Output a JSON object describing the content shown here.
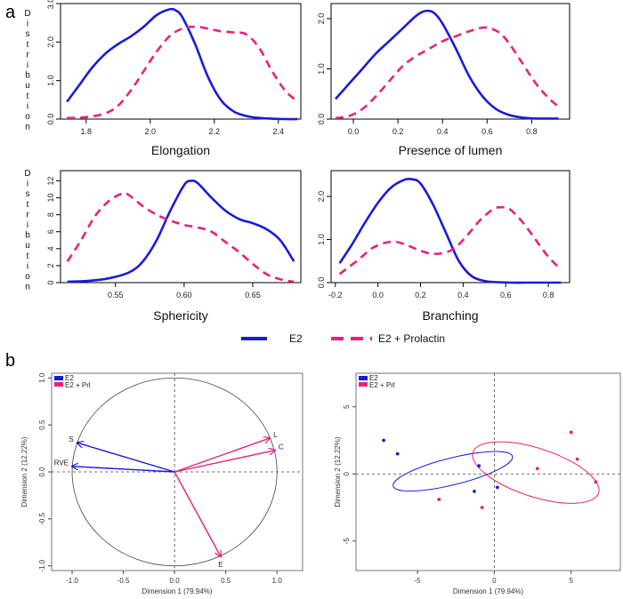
{
  "labels": {
    "a": "a",
    "b": "b"
  },
  "colors": {
    "e2": "#1a1adb",
    "prl": "#e8207d",
    "axis": "#333333"
  },
  "ylab_density": "Distribution",
  "legend_a": {
    "e2": "E2",
    "prl": "E2 + Prolactin"
  },
  "legend_b": {
    "e2": "E2",
    "prl": "E2 + Prl"
  },
  "chart_data": [
    {
      "id": "elongation",
      "type": "line",
      "xlabel": "Elongation",
      "ylabel": "Distribution",
      "xlim": [
        1.72,
        2.47
      ],
      "ylim": [
        0,
        3.0
      ],
      "xticks": [
        1.8,
        2.0,
        2.2,
        2.4
      ],
      "xtick_labels": [
        "1.8",
        "2.0",
        "2.2",
        "2.4"
      ],
      "yticks": [
        0,
        1.0,
        2.0,
        3.0
      ],
      "ytick_labels": [
        "0.0",
        "1.0",
        "2.0",
        "3.0"
      ],
      "series": [
        {
          "name": "E2",
          "style": "solid",
          "x": [
            1.74,
            1.78,
            1.82,
            1.86,
            1.9,
            1.94,
            1.98,
            2.02,
            2.06,
            2.08,
            2.1,
            2.14,
            2.18,
            2.22,
            2.26,
            2.3,
            2.34,
            2.38,
            2.42,
            2.46
          ],
          "y": [
            0.45,
            0.9,
            1.35,
            1.7,
            1.95,
            2.15,
            2.4,
            2.7,
            2.85,
            2.82,
            2.65,
            1.95,
            1.1,
            0.5,
            0.2,
            0.08,
            0.03,
            0.01,
            0.0,
            0.0
          ]
        },
        {
          "name": "E2 + Prolactin",
          "style": "dashed",
          "x": [
            1.74,
            1.8,
            1.86,
            1.9,
            1.94,
            1.98,
            2.02,
            2.06,
            2.1,
            2.14,
            2.18,
            2.22,
            2.26,
            2.3,
            2.34,
            2.38,
            2.42,
            2.46
          ],
          "y": [
            0.03,
            0.05,
            0.15,
            0.35,
            0.75,
            1.25,
            1.75,
            2.15,
            2.35,
            2.4,
            2.35,
            2.28,
            2.25,
            2.2,
            1.85,
            1.25,
            0.75,
            0.45
          ]
        }
      ]
    },
    {
      "id": "lumen",
      "type": "line",
      "xlabel": "Presence of lumen",
      "ylabel": "",
      "xlim": [
        -0.1,
        0.97
      ],
      "ylim": [
        0,
        2.3
      ],
      "xticks": [
        0.0,
        0.2,
        0.4,
        0.6,
        0.8
      ],
      "xtick_labels": [
        "0.0",
        "0.2",
        "0.4",
        "0.6",
        "0.8"
      ],
      "yticks": [
        0,
        1.0,
        2.0
      ],
      "ytick_labels": [
        "0.0",
        "1.0",
        "2.0"
      ],
      "series": [
        {
          "name": "E2",
          "style": "solid",
          "x": [
            -0.08,
            -0.02,
            0.04,
            0.1,
            0.16,
            0.22,
            0.28,
            0.32,
            0.36,
            0.4,
            0.46,
            0.52,
            0.58,
            0.64,
            0.7,
            0.76,
            0.82,
            0.88,
            0.92
          ],
          "y": [
            0.4,
            0.7,
            1.0,
            1.3,
            1.55,
            1.8,
            2.05,
            2.15,
            2.12,
            1.9,
            1.4,
            0.85,
            0.45,
            0.2,
            0.08,
            0.03,
            0.01,
            0.01,
            0.01
          ]
        },
        {
          "name": "E2 + Prolactin",
          "style": "dashed",
          "x": [
            -0.08,
            -0.02,
            0.04,
            0.1,
            0.16,
            0.22,
            0.28,
            0.34,
            0.4,
            0.46,
            0.52,
            0.58,
            0.62,
            0.66,
            0.7,
            0.76,
            0.82,
            0.88,
            0.92
          ],
          "y": [
            0.02,
            0.06,
            0.2,
            0.45,
            0.75,
            1.05,
            1.25,
            1.4,
            1.55,
            1.65,
            1.75,
            1.82,
            1.8,
            1.7,
            1.5,
            1.1,
            0.7,
            0.4,
            0.25
          ]
        }
      ]
    },
    {
      "id": "sphericity",
      "type": "line",
      "xlabel": "Sphericity",
      "ylabel": "Distribution",
      "xlim": [
        0.51,
        0.685
      ],
      "ylim": [
        0,
        13.2
      ],
      "xticks": [
        0.55,
        0.6,
        0.65
      ],
      "xtick_labels": [
        "0.55",
        "0.60",
        "0.65"
      ],
      "yticks": [
        0,
        2,
        4,
        6,
        8,
        10,
        12
      ],
      "ytick_labels": [
        "0",
        "2",
        "4",
        "6",
        "8",
        "10",
        "12"
      ],
      "series": [
        {
          "name": "E2",
          "style": "solid",
          "x": [
            0.515,
            0.53,
            0.545,
            0.56,
            0.57,
            0.58,
            0.59,
            0.6,
            0.605,
            0.61,
            0.62,
            0.63,
            0.64,
            0.65,
            0.66,
            0.67,
            0.68
          ],
          "y": [
            0.1,
            0.2,
            0.5,
            1.2,
            2.5,
            5.0,
            8.5,
            11.5,
            12.0,
            11.7,
            10.0,
            8.5,
            7.5,
            7.0,
            6.3,
            5.0,
            2.5
          ]
        },
        {
          "name": "E2 + Prolactin",
          "style": "dashed",
          "x": [
            0.515,
            0.525,
            0.535,
            0.545,
            0.555,
            0.56,
            0.57,
            0.58,
            0.59,
            0.6,
            0.61,
            0.62,
            0.63,
            0.64,
            0.65,
            0.66,
            0.67,
            0.68
          ],
          "y": [
            2.5,
            5.0,
            7.8,
            9.6,
            10.5,
            10.3,
            9.0,
            8.0,
            7.3,
            6.8,
            6.5,
            6.0,
            4.8,
            3.6,
            2.2,
            1.0,
            0.4,
            0.1
          ]
        }
      ]
    },
    {
      "id": "branching",
      "type": "line",
      "xlabel": "Branching",
      "ylabel": "",
      "xlim": [
        -0.22,
        0.9
      ],
      "ylim": [
        0,
        2.6
      ],
      "xticks": [
        -0.2,
        0.0,
        0.2,
        0.4,
        0.6,
        0.8
      ],
      "xtick_labels": [
        "-0.2",
        "0.0",
        "0.2",
        "0.4",
        "0.6",
        "0.8"
      ],
      "yticks": [
        0,
        1.0,
        2.0
      ],
      "ytick_labels": [
        "0.0",
        "1.0",
        "2.0"
      ],
      "series": [
        {
          "name": "E2",
          "style": "solid",
          "x": [
            -0.18,
            -0.12,
            -0.06,
            0.0,
            0.06,
            0.12,
            0.16,
            0.2,
            0.26,
            0.32,
            0.38,
            0.44,
            0.5,
            0.56,
            0.62,
            0.7,
            0.78,
            0.86
          ],
          "y": [
            0.45,
            0.9,
            1.4,
            1.85,
            2.2,
            2.38,
            2.4,
            2.3,
            1.8,
            1.15,
            0.5,
            0.15,
            0.04,
            0.01,
            0.0,
            0.0,
            0.0,
            0.0
          ]
        },
        {
          "name": "E2 + Prolactin",
          "style": "dashed",
          "x": [
            -0.18,
            -0.1,
            -0.02,
            0.06,
            0.12,
            0.18,
            0.24,
            0.3,
            0.36,
            0.42,
            0.48,
            0.54,
            0.58,
            0.62,
            0.68,
            0.74,
            0.8,
            0.86
          ],
          "y": [
            0.2,
            0.5,
            0.82,
            0.95,
            0.9,
            0.78,
            0.68,
            0.68,
            0.8,
            1.1,
            1.45,
            1.7,
            1.75,
            1.7,
            1.4,
            1.0,
            0.6,
            0.3
          ]
        }
      ]
    },
    {
      "id": "correlation-circle",
      "type": "scatter",
      "xlabel": "Dimension 1 (79.94%)",
      "ylabel": "Dimension 2 (12.22%)",
      "xlim": [
        -1.2,
        1.25
      ],
      "ylim": [
        -1.05,
        1.05
      ],
      "xticks": [
        -1.0,
        -0.5,
        0.0,
        0.5,
        1.0
      ],
      "xtick_labels": [
        "-1.0",
        "-0.5",
        "0.0",
        "0.5",
        "1.0"
      ],
      "yticks": [
        -1.0,
        -0.5,
        0.0,
        0.5,
        1.0
      ],
      "ytick_labels": [
        "-1.0",
        "-0.5",
        "0.0",
        "0.5",
        "1.0"
      ],
      "vectors": [
        {
          "label": "S",
          "x": -0.95,
          "y": 0.31,
          "group": "E2"
        },
        {
          "label": "RVE",
          "x": -1.0,
          "y": 0.06,
          "group": "E2"
        },
        {
          "label": "L",
          "x": 0.93,
          "y": 0.36,
          "group": "E2 + Prl"
        },
        {
          "label": "C",
          "x": 0.98,
          "y": 0.23,
          "group": "E2 + Prl"
        },
        {
          "label": "E",
          "x": 0.45,
          "y": -0.9,
          "group": "E2 + Prl"
        }
      ]
    },
    {
      "id": "individuals",
      "type": "scatter",
      "xlabel": "Dimension 1 (79.94%)",
      "ylabel": "Dimension 2 (12.22%)",
      "xlim": [
        -9.0,
        8.2
      ],
      "ylim": [
        -7.2,
        7.5
      ],
      "xticks": [
        -5,
        0,
        5
      ],
      "xtick_labels": [
        "-5",
        "0",
        "5"
      ],
      "yticks": [
        -5,
        0,
        5
      ],
      "ytick_labels": [
        "-5",
        "0",
        "5"
      ],
      "series": [
        {
          "name": "E2",
          "x": [
            -7.2,
            -6.3,
            -1.0,
            -1.3,
            0.2
          ],
          "y": [
            2.5,
            1.5,
            0.6,
            -1.3,
            -1.0
          ]
        },
        {
          "name": "E2 + Prl",
          "x": [
            -3.6,
            -0.8,
            2.8,
            5.0,
            5.4,
            6.6
          ],
          "y": [
            -1.9,
            -2.5,
            0.4,
            3.1,
            1.1,
            -0.6
          ]
        }
      ],
      "ellipses": [
        {
          "group": "E2",
          "cx": -2.7,
          "cy": 0.2,
          "rx": 4.0,
          "ry": 1.0,
          "angle": -14
        },
        {
          "group": "E2 + Prl",
          "cx": 2.7,
          "cy": 0.1,
          "rx": 4.3,
          "ry": 1.8,
          "angle": 18
        }
      ]
    }
  ]
}
